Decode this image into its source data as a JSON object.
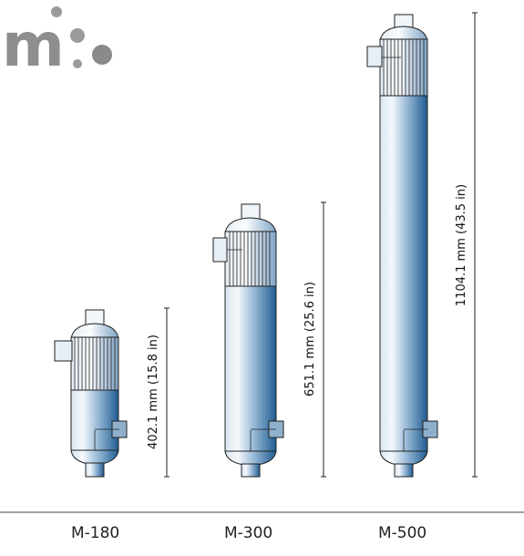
{
  "logo": {
    "text": "m",
    "color": "#8e8e90"
  },
  "colors": {
    "body_light": "#e9f1f8",
    "body_dark": "#2e6a9c",
    "outline": "#222222"
  },
  "models": [
    {
      "name": "M-180",
      "dimension": "402.1 mm (15.8 in)"
    },
    {
      "name": "M-300",
      "dimension": "651.1 mm (25.6 in)"
    },
    {
      "name": "M-500",
      "dimension": "1104.1 mm (43.5 in)"
    }
  ]
}
